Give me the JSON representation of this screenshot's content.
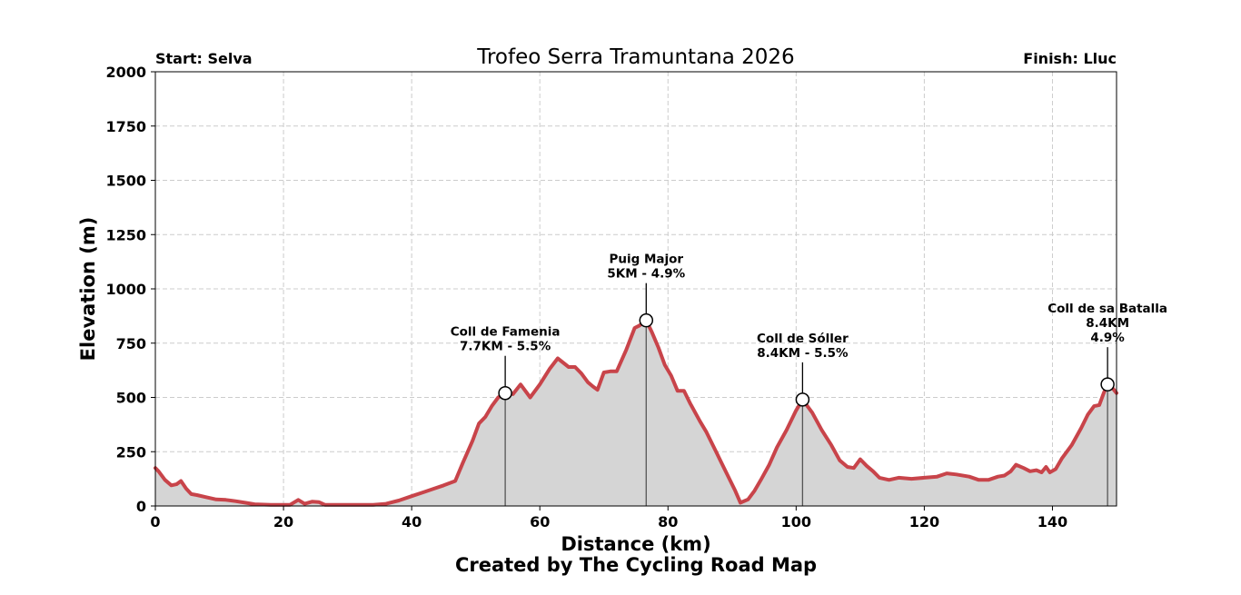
{
  "chart_data": {
    "type": "area",
    "title": "Trofeo Serra Tramuntana 2026",
    "start_label": "Start: Selva",
    "finish_label": "Finish: Lluc",
    "xlabel": "Distance (km)",
    "ylabel": "Elevation (m)",
    "credit": "Created by The Cycling Road Map",
    "xlim": [
      0,
      150
    ],
    "ylim": [
      0,
      2000
    ],
    "x_ticks": [
      0,
      20,
      40,
      60,
      80,
      100,
      120,
      140
    ],
    "y_ticks": [
      0,
      250,
      500,
      750,
      1000,
      1250,
      1500,
      1750,
      2000
    ],
    "grid": true,
    "line_color": "#c8444a",
    "fill_color": "#d5d5d5",
    "series": [
      {
        "name": "Elevation",
        "x": [
          0,
          0.5,
          1.5,
          2.5,
          3.3,
          4,
          4.8,
          5.6,
          6.5,
          8,
          9.5,
          11,
          12.5,
          14,
          15.5,
          18,
          21,
          22.3,
          23.3,
          24.5,
          25.5,
          26.5,
          28,
          31,
          34,
          36,
          38,
          40,
          42,
          43.5,
          45,
          46.8,
          48,
          49.5,
          50.5,
          51.5,
          52.5,
          53.5,
          54.6,
          55.8,
          57,
          58.5,
          60,
          61.5,
          62.8,
          64.5,
          65.5,
          66.5,
          67.5,
          68.3,
          69,
          70,
          71,
          72,
          73.5,
          74.8,
          75.5,
          76.6,
          77.5,
          78.5,
          79.5,
          80.5,
          81.5,
          82.5,
          83.5,
          85,
          86,
          87.5,
          89,
          90.5,
          91.3,
          92.5,
          93.5,
          94.5,
          95.8,
          97,
          98.5,
          100,
          101,
          102.5,
          104,
          105.5,
          106.8,
          108,
          109,
          110,
          111,
          112,
          113,
          114.5,
          116,
          118,
          120,
          122,
          123.5,
          125,
          127,
          128.5,
          130,
          131.5,
          132.5,
          133.5,
          134.3,
          135.5,
          136.5,
          137.5,
          138.3,
          139,
          139.6,
          140.5,
          141.5,
          143,
          144.5,
          145.5,
          146.5,
          147.3,
          148,
          148.6,
          149.3,
          150
        ],
        "values": [
          175,
          160,
          120,
          95,
          100,
          115,
          80,
          55,
          50,
          40,
          30,
          28,
          22,
          15,
          8,
          5,
          5,
          28,
          10,
          20,
          18,
          5,
          5,
          5,
          5,
          10,
          25,
          45,
          65,
          80,
          95,
          115,
          200,
          300,
          380,
          410,
          460,
          500,
          520,
          515,
          560,
          500,
          560,
          630,
          680,
          640,
          640,
          610,
          570,
          550,
          535,
          615,
          620,
          620,
          720,
          820,
          830,
          855,
          800,
          730,
          650,
          600,
          530,
          530,
          470,
          390,
          340,
          250,
          160,
          70,
          15,
          30,
          70,
          120,
          190,
          270,
          350,
          440,
          490,
          430,
          350,
          280,
          210,
          180,
          175,
          215,
          185,
          160,
          130,
          120,
          130,
          125,
          130,
          135,
          150,
          145,
          135,
          120,
          120,
          135,
          140,
          160,
          190,
          175,
          160,
          165,
          155,
          180,
          155,
          170,
          220,
          280,
          360,
          420,
          460,
          465,
          520,
          560,
          545,
          520
        ]
      }
    ],
    "annotations": [
      {
        "name": "Coll de Famenia",
        "detail": "7.7KM - 5.5%",
        "x": 54.6,
        "y": 520
      },
      {
        "name": "Puig Major",
        "detail": "5KM - 4.9%",
        "x": 76.6,
        "y": 855
      },
      {
        "name": "Coll de Sóller",
        "detail": "8.4KM - 5.5%",
        "x": 101,
        "y": 490
      },
      {
        "name": "Coll de sa Batalla",
        "detail": "8.4KM\n4.9%",
        "x": 148.6,
        "y": 560
      }
    ]
  }
}
